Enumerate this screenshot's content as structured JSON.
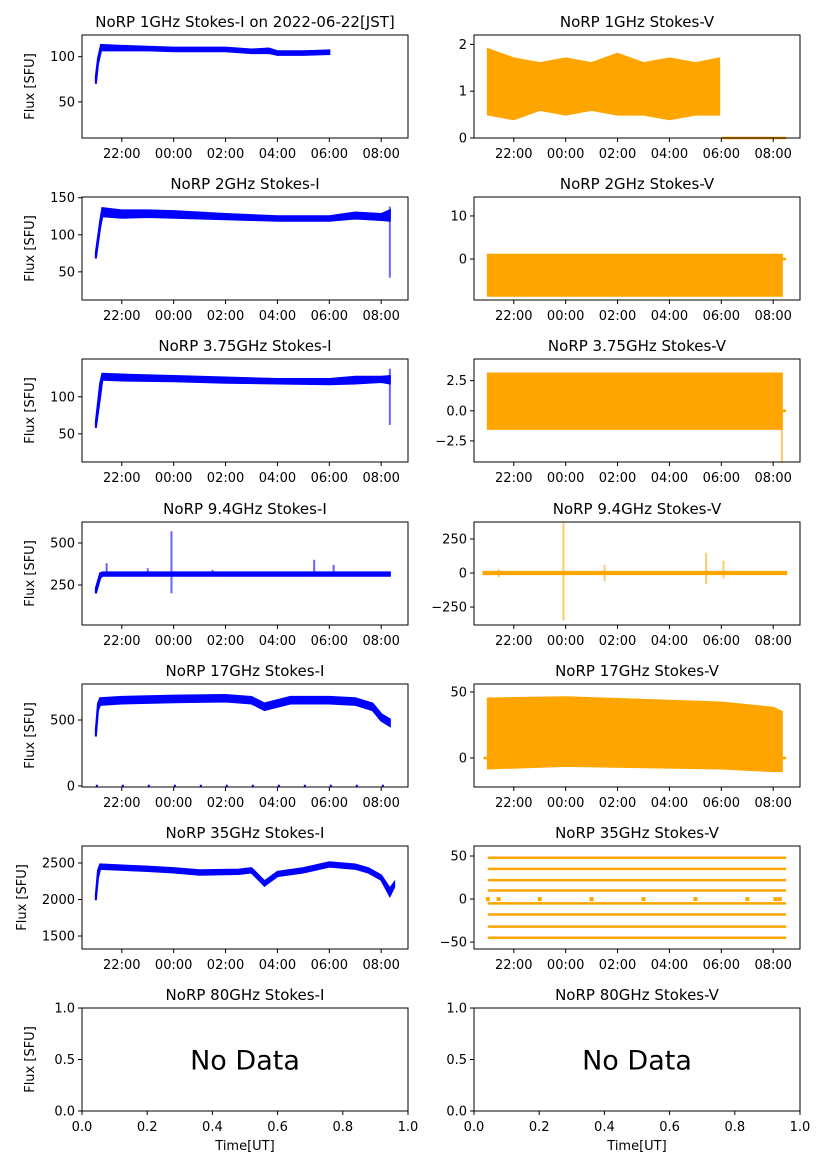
{
  "colors": {
    "stokes_i": "#0000ff",
    "stokes_v": "#ffa500"
  },
  "chart_data": [
    {
      "type": "scatter",
      "title": "NoRP 1GHz Stokes-I on 2022-06-22[JST]",
      "ylabel": "Flux [SFU]",
      "xlim": [
        "20:28",
        "09:02"
      ],
      "ylim": [
        10,
        124
      ],
      "yticks": [
        50,
        100
      ],
      "xticks": [
        "22:00",
        "00:00",
        "02:00",
        "04:00",
        "06:00",
        "08:00"
      ],
      "color": "#0000ff",
      "bands": [
        {
          "t": [
            "21:00",
            "21:05",
            "21:12",
            "22:00",
            "23:00",
            "00:00",
            "01:00",
            "02:00",
            "03:00",
            "03:40",
            "04:00",
            "05:00",
            "06:00"
          ],
          "low": [
            70,
            92,
            107,
            107,
            107,
            106,
            106,
            106,
            104,
            104,
            102,
            102,
            103
          ],
          "high": [
            78,
            98,
            113,
            112,
            111,
            110,
            110,
            110,
            108,
            109,
            106,
            106,
            107
          ]
        }
      ],
      "spikes": [],
      "hlines": []
    },
    {
      "type": "scatter",
      "title": "NoRP 1GHz Stokes-V",
      "ylabel": "",
      "xlim": [
        "20:28",
        "09:02"
      ],
      "ylim": [
        0,
        2.2
      ],
      "yticks": [
        0,
        1,
        2
      ],
      "xticks": [
        "22:00",
        "00:00",
        "02:00",
        "04:00",
        "06:00",
        "08:00"
      ],
      "color": "#ffa500",
      "bands": [
        {
          "t": [
            "21:00",
            "22:00",
            "23:00",
            "00:00",
            "01:00",
            "02:00",
            "03:00",
            "04:00",
            "05:00",
            "05:55"
          ],
          "low": [
            0.5,
            0.4,
            0.6,
            0.5,
            0.6,
            0.5,
            0.5,
            0.4,
            0.5,
            0.5
          ],
          "high": [
            1.9,
            1.7,
            1.6,
            1.7,
            1.6,
            1.8,
            1.6,
            1.7,
            1.6,
            1.7
          ]
        }
      ],
      "spikes": [],
      "hlines": [
        {
          "value": 0,
          "from": "06:00",
          "to": "08:30"
        }
      ]
    },
    {
      "type": "scatter",
      "title": "NoRP 2GHz Stokes-I",
      "ylabel": "Flux [SFU]",
      "xlim": [
        "20:28",
        "09:02"
      ],
      "ylim": [
        12,
        151
      ],
      "yticks": [
        50,
        100,
        150
      ],
      "xticks": [
        "22:00",
        "00:00",
        "02:00",
        "04:00",
        "06:00",
        "08:00"
      ],
      "color": "#0000ff",
      "bands": [
        {
          "t": [
            "21:00",
            "21:10",
            "21:15",
            "22:00",
            "23:00",
            "00:00",
            "02:00",
            "04:00",
            "06:00",
            "07:00",
            "08:00",
            "08:20"
          ],
          "low": [
            68,
            110,
            125,
            123,
            124,
            123,
            121,
            119,
            119,
            122,
            120,
            119
          ],
          "high": [
            76,
            118,
            136,
            133,
            133,
            132,
            128,
            125,
            125,
            130,
            128,
            133
          ]
        }
      ],
      "spikes": [
        {
          "t": "08:20",
          "low": 42,
          "high": 138
        }
      ],
      "hlines": []
    },
    {
      "type": "scatter",
      "title": "NoRP 2GHz Stokes-V",
      "ylabel": "",
      "xlim": [
        "20:28",
        "09:02"
      ],
      "ylim": [
        -9.5,
        14.4
      ],
      "yticks": [
        0,
        10
      ],
      "xticks": [
        "22:00",
        "00:00",
        "02:00",
        "04:00",
        "06:00",
        "08:00"
      ],
      "color": "#ffa500",
      "bands": [
        {
          "t": [
            "21:00",
            "08:20"
          ],
          "low": [
            -8.5,
            -8.5
          ],
          "high": [
            1,
            1
          ]
        }
      ],
      "spikes": [],
      "hlines": [
        {
          "value": 0,
          "from": "08:20",
          "to": "08:30"
        }
      ]
    },
    {
      "type": "scatter",
      "title": "NoRP 3.75GHz Stokes-I",
      "ylabel": "Flux [SFU]",
      "xlim": [
        "20:28",
        "09:02"
      ],
      "ylim": [
        12,
        151
      ],
      "yticks": [
        50,
        100
      ],
      "xticks": [
        "22:00",
        "00:00",
        "02:00",
        "04:00",
        "06:00",
        "08:00"
      ],
      "color": "#0000ff",
      "bands": [
        {
          "t": [
            "21:00",
            "21:10",
            "21:15",
            "22:00",
            "00:00",
            "02:00",
            "04:00",
            "06:00",
            "07:00",
            "08:00",
            "08:20"
          ],
          "low": [
            58,
            100,
            123,
            122,
            121,
            119,
            118,
            117,
            118,
            120,
            118
          ],
          "high": [
            66,
            118,
            131,
            130,
            128,
            126,
            124,
            124,
            127,
            127,
            128
          ]
        }
      ],
      "spikes": [
        {
          "t": "08:20",
          "low": 62,
          "high": 138
        }
      ],
      "hlines": []
    },
    {
      "type": "scatter",
      "title": "NoRP 3.75GHz Stokes-V",
      "ylabel": "",
      "xlim": [
        "20:28",
        "09:02"
      ],
      "ylim": [
        -4.25,
        4.3
      ],
      "yticks": [
        -2.5,
        0.0,
        2.5
      ],
      "xticks": [
        "22:00",
        "00:00",
        "02:00",
        "04:00",
        "06:00",
        "08:00"
      ],
      "color": "#ffa500",
      "bands": [
        {
          "t": [
            "21:00",
            "08:20"
          ],
          "low": [
            -1.5,
            -1.5
          ],
          "high": [
            3.1,
            3.1
          ]
        }
      ],
      "spikes": [
        {
          "t": "08:20",
          "low": -4.3,
          "high": 0
        }
      ],
      "hlines": [
        {
          "value": 0,
          "from": "08:20",
          "to": "08:30"
        }
      ]
    },
    {
      "type": "scatter",
      "title": "NoRP 9.4GHz Stokes-I",
      "ylabel": "Flux [SFU]",
      "xlim": [
        "20:28",
        "09:02"
      ],
      "ylim": [
        12,
        625
      ],
      "yticks": [
        250,
        500
      ],
      "xticks": [
        "22:00",
        "00:00",
        "02:00",
        "04:00",
        "06:00",
        "08:00"
      ],
      "color": "#0000ff",
      "bands": [
        {
          "t": [
            "21:00",
            "21:10",
            "21:15",
            "08:20"
          ],
          "low": [
            200,
            290,
            305,
            305
          ],
          "high": [
            230,
            320,
            325,
            325
          ]
        }
      ],
      "spikes": [
        {
          "t": "21:25",
          "low": 300,
          "high": 380
        },
        {
          "t": "23:00",
          "low": 300,
          "high": 350
        },
        {
          "t": "23:55",
          "low": 200,
          "high": 570
        },
        {
          "t": "01:30",
          "low": 300,
          "high": 340
        },
        {
          "t": "05:25",
          "low": 300,
          "high": 400
        },
        {
          "t": "06:10",
          "low": 300,
          "high": 370
        }
      ],
      "hlines": []
    },
    {
      "type": "scatter",
      "title": "NoRP 9.4GHz Stokes-V",
      "ylabel": "",
      "xlim": [
        "20:28",
        "09:02"
      ],
      "ylim": [
        -382,
        375
      ],
      "yticks": [
        -250,
        0,
        250
      ],
      "xticks": [
        "22:00",
        "00:00",
        "02:00",
        "04:00",
        "06:00",
        "08:00"
      ],
      "color": "#ffa500",
      "bands": [
        {
          "t": [
            "20:50",
            "08:30"
          ],
          "low": [
            -8,
            -8
          ],
          "high": [
            8,
            8
          ]
        }
      ],
      "spikes": [
        {
          "t": "21:25",
          "low": -30,
          "high": 30
        },
        {
          "t": "23:55",
          "low": -350,
          "high": 370
        },
        {
          "t": "01:30",
          "low": -60,
          "high": 60
        },
        {
          "t": "05:25",
          "low": -80,
          "high": 150
        },
        {
          "t": "06:05",
          "low": -40,
          "high": 90
        }
      ],
      "hlines": []
    },
    {
      "type": "scatter",
      "title": "NoRP 17GHz Stokes-I",
      "ylabel": "Flux [SFU]",
      "xlim": [
        "20:28",
        "09:02"
      ],
      "ylim": [
        -8,
        773
      ],
      "yticks": [
        0,
        500
      ],
      "xticks": [
        "22:00",
        "00:00",
        "02:00",
        "04:00",
        "06:00",
        "08:00"
      ],
      "color": "#0000ff",
      "bands": [
        {
          "t": [
            "21:00",
            "21:05",
            "21:10",
            "22:00",
            "00:00",
            "02:00",
            "03:00",
            "03:30",
            "04:30",
            "06:00",
            "07:00",
            "07:40",
            "08:00",
            "08:20"
          ],
          "low": [
            375,
            575,
            615,
            625,
            635,
            640,
            625,
            575,
            625,
            625,
            615,
            575,
            495,
            455
          ],
          "high": [
            425,
            625,
            665,
            675,
            685,
            690,
            675,
            625,
            675,
            675,
            665,
            625,
            545,
            505
          ]
        }
      ],
      "spikes": [],
      "hlines": [
        {
          "value": 0,
          "from": "21:00",
          "to": "08:30"
        }
      ]
    },
    {
      "type": "scatter",
      "title": "NoRP 17GHz Stokes-V",
      "ylabel": "",
      "xlim": [
        "20:28",
        "09:02"
      ],
      "ylim": [
        -22,
        56
      ],
      "yticks": [
        0,
        50
      ],
      "xticks": [
        "22:00",
        "00:00",
        "02:00",
        "04:00",
        "06:00",
        "08:00"
      ],
      "color": "#ffa500",
      "bands": [
        {
          "t": [
            "21:00",
            "00:00",
            "03:00",
            "06:00",
            "08:00",
            "08:20"
          ],
          "low": [
            -8,
            -6,
            -7,
            -8,
            -10,
            -10
          ],
          "high": [
            45,
            46,
            44,
            42,
            38,
            35
          ]
        }
      ],
      "spikes": [],
      "hlines": [
        {
          "value": 0,
          "from": "20:50",
          "to": "08:30"
        }
      ]
    },
    {
      "type": "scatter",
      "title": "NoRP 35GHz Stokes-I",
      "ylabel": "Flux [SFU]",
      "xlim": [
        "20:28",
        "09:02"
      ],
      "ylim": [
        1322,
        2733
      ],
      "yticks": [
        1500,
        2000,
        2500
      ],
      "xticks": [
        "22:00",
        "00:00",
        "02:00",
        "04:00",
        "06:00",
        "08:00"
      ],
      "color": "#0000ff",
      "bands": [
        {
          "t": [
            "21:00",
            "21:05",
            "21:10",
            "23:00",
            "00:00",
            "01:00",
            "02:30",
            "03:00",
            "03:30",
            "04:00",
            "05:00",
            "06:00",
            "07:00",
            "07:30",
            "08:00",
            "08:20",
            "08:30"
          ],
          "low": [
            1990,
            2300,
            2420,
            2390,
            2370,
            2340,
            2350,
            2370,
            2190,
            2320,
            2370,
            2450,
            2420,
            2370,
            2270,
            2050,
            2170
          ],
          "high": [
            2060,
            2400,
            2480,
            2450,
            2430,
            2400,
            2410,
            2430,
            2250,
            2380,
            2430,
            2510,
            2480,
            2430,
            2330,
            2150,
            2230
          ]
        }
      ],
      "spikes": [],
      "hlines": []
    },
    {
      "type": "scatter",
      "title": "NoRP 35GHz Stokes-V",
      "ylabel": "",
      "xlim": [
        "20:28",
        "09:02"
      ],
      "ylim": [
        -58,
        61.6
      ],
      "yticks": [
        -50,
        0,
        50
      ],
      "xticks": [
        "22:00",
        "00:00",
        "02:00",
        "04:00",
        "06:00",
        "08:00"
      ],
      "color": "#ffa500",
      "bands": [],
      "spikes": [],
      "hlines": [
        {
          "value": 48,
          "from": "21:00",
          "to": "08:30"
        },
        {
          "value": 35,
          "from": "21:00",
          "to": "08:30"
        },
        {
          "value": 22,
          "from": "21:00",
          "to": "08:30"
        },
        {
          "value": 10,
          "from": "21:00",
          "to": "08:30"
        },
        {
          "value": -5,
          "from": "21:00",
          "to": "08:30"
        },
        {
          "value": -18,
          "from": "21:00",
          "to": "08:30"
        },
        {
          "value": -32,
          "from": "21:00",
          "to": "08:30"
        },
        {
          "value": -45,
          "from": "21:00",
          "to": "08:30"
        }
      ]
    },
    {
      "type": "scatter",
      "title": "NoRP 80GHz Stokes-I",
      "ylabel": "Flux [SFU]",
      "xlabel": "Time[UT]",
      "annotation": "No Data",
      "xlim": [
        0,
        1
      ],
      "ylim": [
        0,
        1
      ],
      "yticks": [
        "0.0",
        "0.5",
        "1.0"
      ],
      "xticks": [
        "0.0",
        "0.2",
        "0.4",
        "0.6",
        "0.8",
        "1.0"
      ],
      "color": "#0000ff",
      "bands": [],
      "spikes": [],
      "hlines": []
    },
    {
      "type": "scatter",
      "title": "NoRP 80GHz Stokes-V",
      "ylabel": "",
      "xlabel": "Time[UT]",
      "annotation": "No Data",
      "xlim": [
        0,
        1
      ],
      "ylim": [
        0,
        1
      ],
      "yticks": [
        "0.0",
        "0.5",
        "1.0"
      ],
      "xticks": [
        "0.0",
        "0.2",
        "0.4",
        "0.6",
        "0.8",
        "1.0"
      ],
      "color": "#ffa500",
      "bands": [],
      "spikes": [],
      "hlines": []
    }
  ]
}
